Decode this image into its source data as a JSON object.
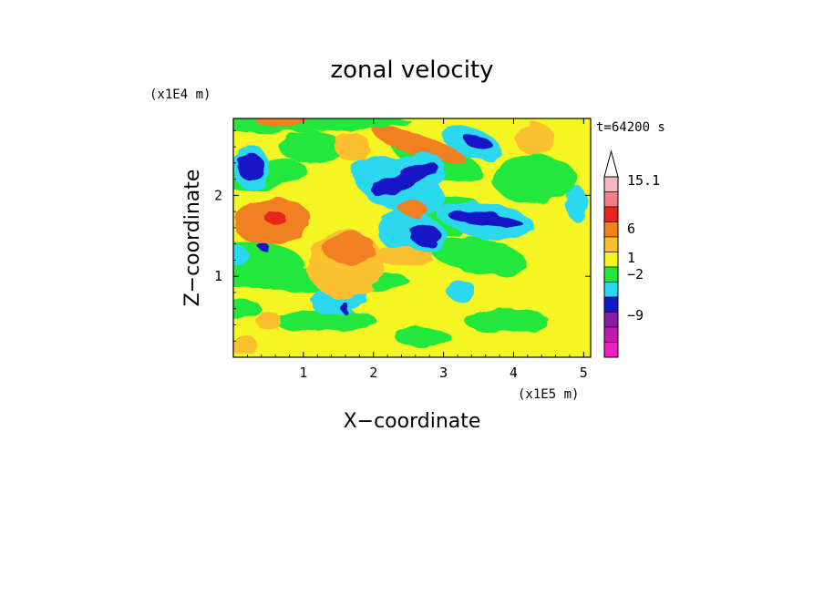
{
  "chart_data": {
    "type": "heatmap",
    "title": "zonal velocity",
    "xlabel": "X−coordinate",
    "ylabel": "Z−coordinate",
    "x_scale_label": "(x1E5 m)",
    "y_scale_label": "(x1E4 m)",
    "time_label": "t=64200 s",
    "xlim": [
      0,
      5.1
    ],
    "ylim": [
      0,
      2.95
    ],
    "x_ticks": [
      "1",
      "2",
      "3",
      "4",
      "5"
    ],
    "x_tick_values": [
      1,
      2,
      3,
      4,
      5
    ],
    "y_ticks": [
      "1",
      "2"
    ],
    "y_tick_values": [
      1,
      2
    ],
    "colorbar": {
      "max_label": "15.1",
      "tick_labels": [
        "15.1",
        "6",
        "1",
        "−2",
        "−9"
      ],
      "levels_top_to_bottom": [
        {
          "color": "#f7b8c4"
        },
        {
          "color": "#ef7f84"
        },
        {
          "color": "#e8251c"
        },
        {
          "color": "#f08020"
        },
        {
          "color": "#fbc02d"
        },
        {
          "color": "#f4f520"
        },
        {
          "color": "#22e83c"
        },
        {
          "color": "#2cd8f0"
        },
        {
          "color": "#1218c8"
        },
        {
          "color": "#8a1aa8"
        },
        {
          "color": "#c21ab0"
        },
        {
          "color": "#f01ec0"
        }
      ],
      "extend_top_color": "#ffffff"
    },
    "features": [
      {
        "x": 0.25,
        "z": 2.35,
        "level": "dark-blue"
      },
      {
        "x": 2.45,
        "z": 2.2,
        "level": "dark-blue"
      },
      {
        "x": 2.75,
        "z": 1.5,
        "level": "dark-blue"
      },
      {
        "x": 3.6,
        "z": 1.7,
        "level": "dark-blue"
      },
      {
        "x": 3.5,
        "z": 2.65,
        "level": "dark-blue"
      },
      {
        "x": 0.6,
        "z": 1.6,
        "level": "orange"
      },
      {
        "x": 1.7,
        "z": 1.3,
        "level": "orange"
      },
      {
        "x": 2.5,
        "z": 2.6,
        "level": "orange"
      },
      {
        "x": 3.0,
        "z": 0.8,
        "level": "yellow"
      }
    ]
  }
}
